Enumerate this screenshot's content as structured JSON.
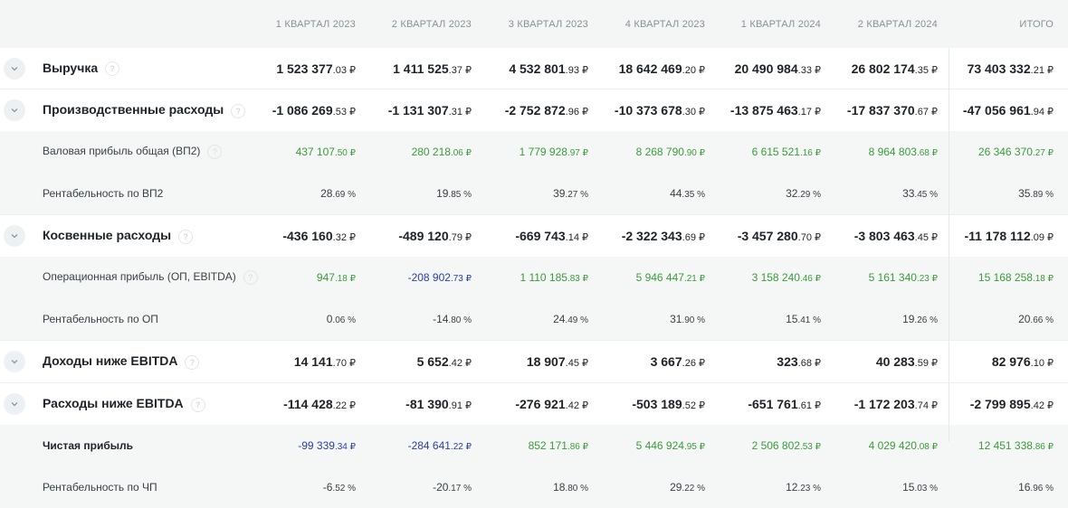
{
  "header": [
    "1 КВАРТАЛ 2023",
    "2 КВАРТАЛ 2023",
    "3 КВАРТАЛ 2023",
    "4 КВАРТАЛ 2023",
    "1 КВАРТАЛ 2024",
    "2 КВАРТАЛ 2024",
    "ИТОГО"
  ],
  "help_glyph": "?",
  "toggle_icon": "chevron-down-icon",
  "rows": [
    {
      "kind": "main",
      "label": "Выручка",
      "help": true,
      "cells": [
        [
          "1 523 377",
          ".03 ₽",
          ""
        ],
        [
          "1 411 525",
          ".37 ₽",
          ""
        ],
        [
          "4 532 801",
          ".93 ₽",
          ""
        ],
        [
          "18 642 469",
          ".20 ₽",
          ""
        ],
        [
          "20 490 984",
          ".33 ₽",
          ""
        ],
        [
          "26 802 174",
          ".35 ₽",
          ""
        ],
        [
          "73 403 332",
          ".21 ₽",
          ""
        ]
      ]
    },
    {
      "kind": "main",
      "label": "Производственные расходы",
      "help": true,
      "cells": [
        [
          "-1 086 269",
          ".53 ₽",
          ""
        ],
        [
          "-1 131 307",
          ".31 ₽",
          ""
        ],
        [
          "-2 752 872",
          ".96 ₽",
          ""
        ],
        [
          "-10 373 678",
          ".30 ₽",
          ""
        ],
        [
          "-13 875 463",
          ".17 ₽",
          ""
        ],
        [
          "-17 837 370",
          ".67 ₽",
          ""
        ],
        [
          "-47 056 961",
          ".94 ₽",
          ""
        ]
      ]
    },
    {
      "kind": "sub",
      "label": "Валовая прибыль общая (ВП2)",
      "help": true,
      "cells": [
        [
          "437 107",
          ".50 ₽",
          "green"
        ],
        [
          "280 218",
          ".06 ₽",
          "green"
        ],
        [
          "1 779 928",
          ".97 ₽",
          "green"
        ],
        [
          "8 268 790",
          ".90 ₽",
          "green"
        ],
        [
          "6 615 521",
          ".16 ₽",
          "green"
        ],
        [
          "8 964 803",
          ".68 ₽",
          "green"
        ],
        [
          "26 346 370",
          ".27 ₽",
          "green"
        ]
      ]
    },
    {
      "kind": "sub",
      "label": "Рентабельность по ВП2",
      "help": false,
      "cells": [
        [
          "28",
          ".69 %",
          ""
        ],
        [
          "19",
          ".85 %",
          ""
        ],
        [
          "39",
          ".27 %",
          ""
        ],
        [
          "44",
          ".35 %",
          ""
        ],
        [
          "32",
          ".29 %",
          ""
        ],
        [
          "33",
          ".45 %",
          ""
        ],
        [
          "35",
          ".89 %",
          ""
        ]
      ]
    },
    {
      "kind": "main",
      "label": "Косвенные расходы",
      "help": true,
      "cells": [
        [
          "-436 160",
          ".32 ₽",
          ""
        ],
        [
          "-489 120",
          ".79 ₽",
          ""
        ],
        [
          "-669 743",
          ".14 ₽",
          ""
        ],
        [
          "-2 322 343",
          ".69 ₽",
          ""
        ],
        [
          "-3 457 280",
          ".70 ₽",
          ""
        ],
        [
          "-3 803 463",
          ".45 ₽",
          ""
        ],
        [
          "-11 178 112",
          ".09 ₽",
          ""
        ]
      ]
    },
    {
      "kind": "sub",
      "label": "Операционная прибыль (ОП, EBITDA)",
      "help": true,
      "cells": [
        [
          "947",
          ".18 ₽",
          "green"
        ],
        [
          "-208 902",
          ".73 ₽",
          "blue"
        ],
        [
          "1 110 185",
          ".83 ₽",
          "green"
        ],
        [
          "5 946 447",
          ".21 ₽",
          "green"
        ],
        [
          "3 158 240",
          ".46 ₽",
          "green"
        ],
        [
          "5 161 340",
          ".23 ₽",
          "green"
        ],
        [
          "15 168 258",
          ".18 ₽",
          "green"
        ]
      ]
    },
    {
      "kind": "sub",
      "label": "Рентабельность по ОП",
      "help": false,
      "cells": [
        [
          "0",
          ".06 %",
          ""
        ],
        [
          "-14",
          ".80 %",
          ""
        ],
        [
          "24",
          ".49 %",
          ""
        ],
        [
          "31",
          ".90 %",
          ""
        ],
        [
          "15",
          ".41 %",
          ""
        ],
        [
          "19",
          ".26 %",
          ""
        ],
        [
          "20",
          ".66 %",
          ""
        ]
      ]
    },
    {
      "kind": "main",
      "label": "Доходы ниже EBITDA",
      "help": true,
      "cells": [
        [
          "14 141",
          ".70 ₽",
          ""
        ],
        [
          "5 652",
          ".42 ₽",
          ""
        ],
        [
          "18 907",
          ".45 ₽",
          ""
        ],
        [
          "3 667",
          ".26 ₽",
          ""
        ],
        [
          "323",
          ".68 ₽",
          ""
        ],
        [
          "40 283",
          ".59 ₽",
          ""
        ],
        [
          "82 976",
          ".10 ₽",
          ""
        ]
      ]
    },
    {
      "kind": "main",
      "label": "Расходы ниже EBITDA",
      "help": true,
      "cells": [
        [
          "-114 428",
          ".22 ₽",
          ""
        ],
        [
          "-81 390",
          ".91 ₽",
          ""
        ],
        [
          "-276 921",
          ".42 ₽",
          ""
        ],
        [
          "-503 189",
          ".52 ₽",
          ""
        ],
        [
          "-651 761",
          ".61 ₽",
          ""
        ],
        [
          "-1 172 203",
          ".74 ₽",
          ""
        ],
        [
          "-2 799 895",
          ".42 ₽",
          ""
        ]
      ]
    },
    {
      "kind": "sub",
      "label": "Чистая прибыль",
      "help": false,
      "bold": true,
      "cells": [
        [
          "-99 339",
          ".34 ₽",
          "blue"
        ],
        [
          "-284 641",
          ".22 ₽",
          "blue"
        ],
        [
          "852 171",
          ".86 ₽",
          "green"
        ],
        [
          "5 446 924",
          ".95 ₽",
          "green"
        ],
        [
          "2 506 802",
          ".53 ₽",
          "green"
        ],
        [
          "4 029 420",
          ".08 ₽",
          "green"
        ],
        [
          "12 451 338",
          ".86 ₽",
          "green"
        ]
      ]
    },
    {
      "kind": "sub",
      "label": "Рентабельность по ЧП",
      "help": false,
      "cells": [
        [
          "-6",
          ".52 %",
          ""
        ],
        [
          "-20",
          ".17 %",
          ""
        ],
        [
          "18",
          ".80 %",
          ""
        ],
        [
          "29",
          ".22 %",
          ""
        ],
        [
          "12",
          ".23 %",
          ""
        ],
        [
          "15",
          ".03 %",
          ""
        ],
        [
          "16",
          ".96 %",
          ""
        ]
      ]
    }
  ]
}
